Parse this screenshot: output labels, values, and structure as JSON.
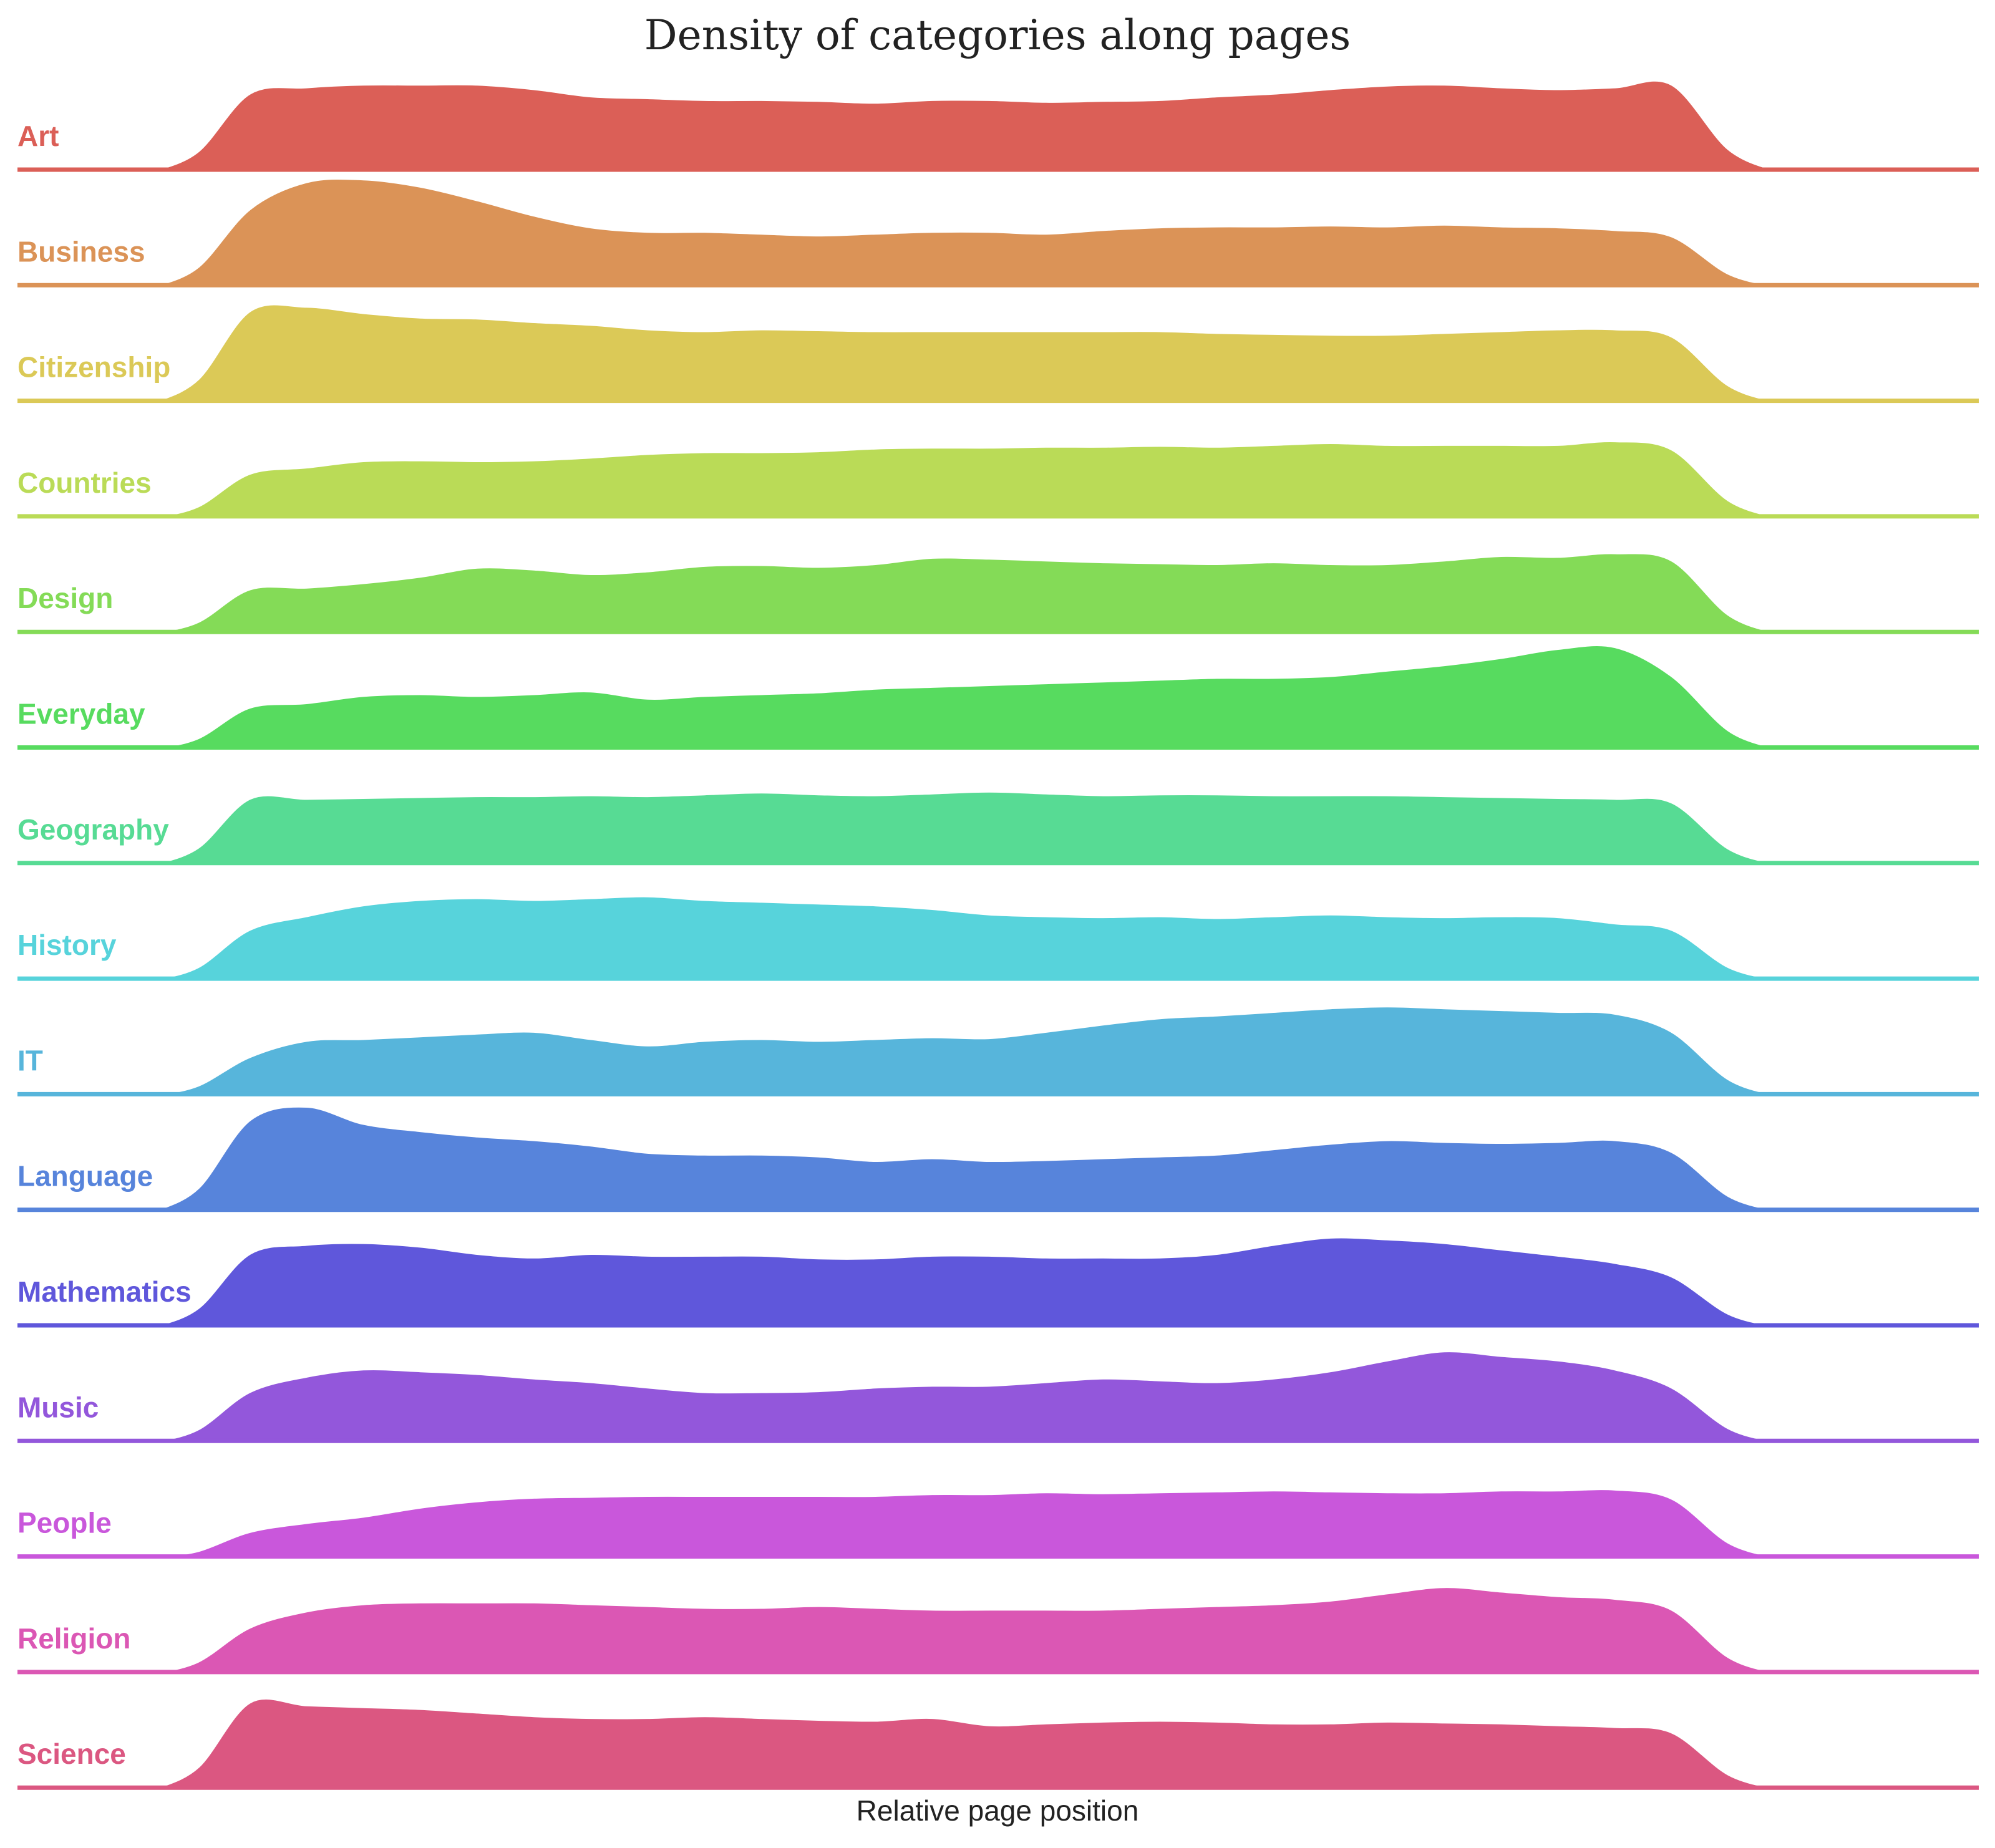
{
  "chart_data": {
    "type": "area",
    "title": "Density of categories along pages",
    "xlabel": "Relative page position",
    "ylabel": "",
    "grid": false,
    "legend": "none",
    "x": [
      0.0,
      0.04,
      0.08,
      0.12,
      0.16,
      0.2,
      0.24,
      0.28,
      0.32,
      0.36,
      0.4,
      0.44,
      0.48,
      0.52,
      0.56,
      0.6,
      0.64,
      0.68,
      0.72,
      0.76,
      0.8,
      0.84,
      0.88,
      0.92,
      0.96,
      1.0
    ],
    "series": [
      {
        "name": "Art",
        "color": "#db5f57",
        "values": [
          0.85,
          0.92,
          0.95,
          0.95,
          0.95,
          0.9,
          0.82,
          0.8,
          0.78,
          0.78,
          0.77,
          0.75,
          0.78,
          0.78,
          0.76,
          0.77,
          0.78,
          0.82,
          0.85,
          0.9,
          0.94,
          0.95,
          0.92,
          0.9,
          0.92,
          0.95
        ]
      },
      {
        "name": "Business",
        "color": "#db9357",
        "values": [
          0.85,
          1.15,
          1.18,
          1.1,
          0.95,
          0.78,
          0.65,
          0.6,
          0.6,
          0.58,
          0.56,
          0.58,
          0.6,
          0.6,
          0.58,
          0.62,
          0.65,
          0.66,
          0.66,
          0.67,
          0.66,
          0.68,
          0.66,
          0.65,
          0.62,
          0.55
        ]
      },
      {
        "name": "Citizenship",
        "color": "#dbc957",
        "values": [
          1.0,
          1.05,
          0.98,
          0.93,
          0.92,
          0.88,
          0.85,
          0.8,
          0.78,
          0.8,
          0.79,
          0.78,
          0.78,
          0.78,
          0.78,
          0.78,
          0.78,
          0.76,
          0.75,
          0.74,
          0.74,
          0.76,
          0.78,
          0.8,
          0.8,
          0.72
        ]
      },
      {
        "name": "Countries",
        "color": "#badb57",
        "values": [
          0.48,
          0.55,
          0.62,
          0.63,
          0.62,
          0.63,
          0.66,
          0.7,
          0.72,
          0.72,
          0.73,
          0.76,
          0.77,
          0.77,
          0.78,
          0.78,
          0.79,
          0.78,
          0.8,
          0.82,
          0.8,
          0.8,
          0.8,
          0.8,
          0.84,
          0.75
        ]
      },
      {
        "name": "Design",
        "color": "#84db57",
        "values": [
          0.48,
          0.5,
          0.55,
          0.62,
          0.72,
          0.7,
          0.65,
          0.68,
          0.74,
          0.75,
          0.73,
          0.76,
          0.83,
          0.82,
          0.8,
          0.78,
          0.77,
          0.76,
          0.78,
          0.76,
          0.76,
          0.8,
          0.85,
          0.84,
          0.88,
          0.8
        ]
      },
      {
        "name": "Everyday",
        "color": "#57db5f",
        "values": [
          0.45,
          0.5,
          0.58,
          0.6,
          0.58,
          0.6,
          0.63,
          0.55,
          0.58,
          0.6,
          0.62,
          0.66,
          0.68,
          0.7,
          0.72,
          0.74,
          0.76,
          0.78,
          0.78,
          0.8,
          0.86,
          0.92,
          1.0,
          1.1,
          1.12,
          0.8
        ]
      },
      {
        "name": "Geography",
        "color": "#57db94",
        "values": [
          0.72,
          0.72,
          0.73,
          0.74,
          0.75,
          0.75,
          0.76,
          0.75,
          0.77,
          0.79,
          0.77,
          0.76,
          0.78,
          0.8,
          0.78,
          0.76,
          0.77,
          0.77,
          0.76,
          0.76,
          0.76,
          0.75,
          0.74,
          0.73,
          0.72,
          0.68
        ]
      },
      {
        "name": "History",
        "color": "#57d3db",
        "values": [
          0.55,
          0.7,
          0.82,
          0.88,
          0.9,
          0.88,
          0.9,
          0.92,
          0.88,
          0.86,
          0.84,
          0.82,
          0.78,
          0.72,
          0.7,
          0.69,
          0.7,
          0.68,
          0.7,
          0.72,
          0.7,
          0.69,
          0.7,
          0.69,
          0.62,
          0.55
        ]
      },
      {
        "name": "IT",
        "color": "#57b5db",
        "values": [
          0.42,
          0.6,
          0.62,
          0.65,
          0.68,
          0.7,
          0.62,
          0.55,
          0.6,
          0.62,
          0.6,
          0.62,
          0.64,
          0.63,
          0.7,
          0.78,
          0.85,
          0.88,
          0.92,
          0.96,
          0.98,
          0.96,
          0.94,
          0.92,
          0.9,
          0.7
        ]
      },
      {
        "name": "Language",
        "color": "#5784db",
        "values": [
          1.0,
          1.15,
          0.96,
          0.88,
          0.82,
          0.78,
          0.72,
          0.64,
          0.62,
          0.62,
          0.6,
          0.55,
          0.58,
          0.55,
          0.56,
          0.58,
          0.6,
          0.62,
          0.68,
          0.74,
          0.78,
          0.76,
          0.75,
          0.76,
          0.78,
          0.65
        ]
      },
      {
        "name": "Mathematics",
        "color": "#5f57db",
        "values": [
          0.8,
          0.9,
          0.92,
          0.88,
          0.8,
          0.76,
          0.8,
          0.78,
          0.78,
          0.78,
          0.75,
          0.75,
          0.78,
          0.78,
          0.76,
          0.76,
          0.76,
          0.8,
          0.9,
          0.98,
          0.96,
          0.92,
          0.85,
          0.78,
          0.7,
          0.55
        ]
      },
      {
        "name": "Music",
        "color": "#9357db",
        "values": [
          0.55,
          0.72,
          0.8,
          0.78,
          0.75,
          0.7,
          0.66,
          0.6,
          0.55,
          0.55,
          0.56,
          0.6,
          0.62,
          0.62,
          0.66,
          0.7,
          0.68,
          0.66,
          0.7,
          0.78,
          0.9,
          1.0,
          0.95,
          0.9,
          0.8,
          0.6
        ]
      },
      {
        "name": "People",
        "color": "#c957db",
        "values": [
          0.28,
          0.38,
          0.45,
          0.55,
          0.62,
          0.66,
          0.67,
          0.68,
          0.68,
          0.68,
          0.68,
          0.68,
          0.7,
          0.7,
          0.72,
          0.71,
          0.72,
          0.73,
          0.74,
          0.73,
          0.72,
          0.72,
          0.74,
          0.74,
          0.75,
          0.65
        ]
      },
      {
        "name": "Religion",
        "color": "#db57b4",
        "values": [
          0.5,
          0.68,
          0.76,
          0.78,
          0.78,
          0.78,
          0.76,
          0.74,
          0.72,
          0.72,
          0.74,
          0.72,
          0.7,
          0.7,
          0.7,
          0.7,
          0.72,
          0.74,
          0.76,
          0.8,
          0.88,
          0.95,
          0.9,
          0.85,
          0.82,
          0.7
        ]
      },
      {
        "name": "Science",
        "color": "#db5781",
        "values": [
          0.95,
          0.92,
          0.9,
          0.88,
          0.84,
          0.8,
          0.78,
          0.78,
          0.8,
          0.78,
          0.76,
          0.75,
          0.78,
          0.7,
          0.72,
          0.74,
          0.75,
          0.74,
          0.72,
          0.72,
          0.74,
          0.73,
          0.72,
          0.7,
          0.68,
          0.62
        ]
      }
    ]
  }
}
